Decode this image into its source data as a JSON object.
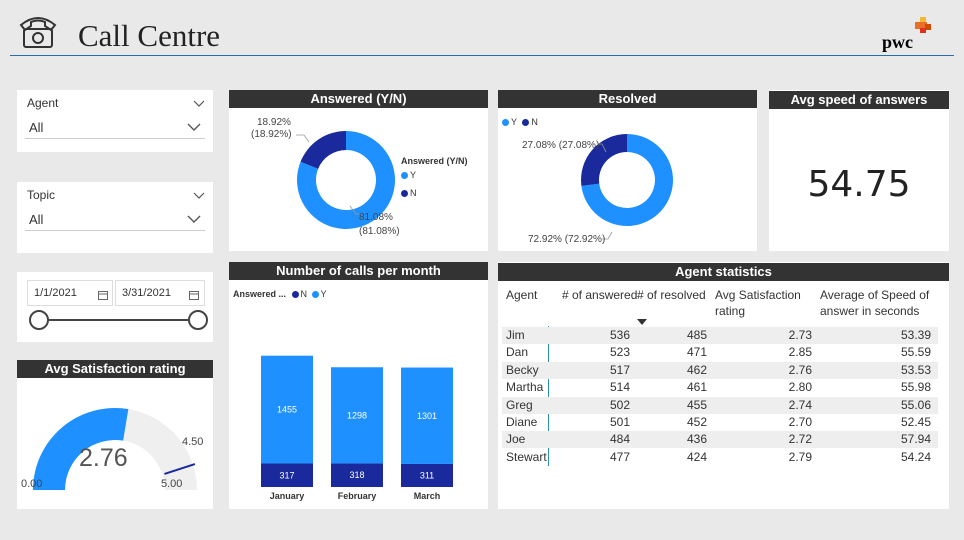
{
  "app": {
    "title": "Call Centre",
    "logo_text": "pwc"
  },
  "colors": {
    "primary": "#1e90ff",
    "dark": "#1a2a9c",
    "header_bg": "#333333",
    "line": "#2b6cb0"
  },
  "slicers": {
    "agent": {
      "label": "Agent",
      "value": "All"
    },
    "topic": {
      "label": "Topic",
      "value": "All"
    },
    "dates": {
      "start": "1/1/2021",
      "end": "3/31/2021"
    }
  },
  "gauge": {
    "title": "Avg Satisfaction rating",
    "value": "2.76",
    "min": "0.00",
    "max": "5.00",
    "target": "4.50",
    "fraction": 0.552,
    "target_fraction": 0.9
  },
  "answered": {
    "title": "Answered (Y/N)",
    "legend_title": "Answered (Y/N)",
    "legend": [
      "Y",
      "N"
    ],
    "y_pct": 81.08,
    "n_pct": 18.92,
    "y_label_1": "81.08%",
    "y_label_2": "(81.08%)",
    "n_label_1": "18.92%",
    "n_label_2": "(18.92%)"
  },
  "resolved": {
    "title": "Resolved",
    "legend": [
      "Y",
      "N"
    ],
    "y_pct": 72.92,
    "n_pct": 27.08,
    "y_label": "72.92% (72.92%)",
    "n_label": "27.08% (27.08%)"
  },
  "speed": {
    "title": "Avg speed of answers",
    "value": "54.75"
  },
  "calls": {
    "title": "Number of calls per month",
    "legend_title": "Answered ...",
    "legend": [
      "N",
      "Y"
    ]
  },
  "chart_data": {
    "type": "bar",
    "stacked": true,
    "categories": [
      "January",
      "February",
      "March"
    ],
    "series": [
      {
        "name": "N",
        "values": [
          317,
          318,
          311
        ]
      },
      {
        "name": "Y",
        "values": [
          1455,
          1298,
          1301
        ]
      }
    ]
  },
  "agent_stats": {
    "title": "Agent statistics",
    "headers": [
      "Agent",
      "# of answered",
      "# of resolved",
      "Avg Satisfaction",
      "rating",
      "Average of Speed of",
      "answer in seconds"
    ],
    "rows": [
      [
        "Jim",
        "536",
        "485",
        "2.73",
        "53.39"
      ],
      [
        "Dan",
        "523",
        "471",
        "2.85",
        "55.59"
      ],
      [
        "Becky",
        "517",
        "462",
        "2.76",
        "53.53"
      ],
      [
        "Martha",
        "514",
        "461",
        "2.80",
        "55.98"
      ],
      [
        "Greg",
        "502",
        "455",
        "2.74",
        "55.06"
      ],
      [
        "Diane",
        "501",
        "452",
        "2.70",
        "52.45"
      ],
      [
        "Joe",
        "484",
        "436",
        "2.72",
        "57.94"
      ],
      [
        "Stewart",
        "477",
        "424",
        "2.79",
        "54.24"
      ]
    ]
  }
}
